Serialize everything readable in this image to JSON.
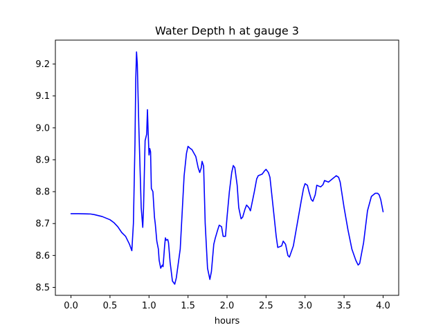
{
  "chart_data": {
    "type": "line",
    "title": "Water Depth h at gauge 3",
    "xlabel": "hours",
    "ylabel": "",
    "xlim": [
      -0.2,
      4.2
    ],
    "ylim": [
      8.475,
      9.275
    ],
    "xticks": [
      0.0,
      0.5,
      1.0,
      1.5,
      2.0,
      2.5,
      3.0,
      3.5,
      4.0
    ],
    "xtick_labels": [
      "0.0",
      "0.5",
      "1.0",
      "1.5",
      "2.0",
      "2.5",
      "3.0",
      "3.5",
      "4.0"
    ],
    "yticks": [
      8.5,
      8.6,
      8.7,
      8.8,
      8.9,
      9.0,
      9.1,
      9.2
    ],
    "ytick_labels": [
      "8.5",
      "8.6",
      "8.7",
      "8.8",
      "8.9",
      "9.0",
      "9.1",
      "9.2"
    ],
    "grid": false,
    "line_color": "#0000ff",
    "series": [
      {
        "x": [
          0.0,
          0.1,
          0.25,
          0.3,
          0.4,
          0.5,
          0.55,
          0.6,
          0.65,
          0.7,
          0.75,
          0.78,
          0.8,
          0.82,
          0.83,
          0.84,
          0.85,
          0.87,
          0.9,
          0.92,
          0.93,
          0.95,
          0.97,
          0.98,
          0.99,
          1.0,
          1.01,
          1.02,
          1.03,
          1.05,
          1.07,
          1.08,
          1.1,
          1.12,
          1.13,
          1.15,
          1.17,
          1.18,
          1.2,
          1.21,
          1.22,
          1.24,
          1.25,
          1.27,
          1.3,
          1.33,
          1.35,
          1.4,
          1.45,
          1.48,
          1.5,
          1.53,
          1.55,
          1.6,
          1.63,
          1.65,
          1.67,
          1.68,
          1.7,
          1.72,
          1.75,
          1.78,
          1.8,
          1.83,
          1.85,
          1.88,
          1.9,
          1.93,
          1.95,
          1.98,
          2.0,
          2.03,
          2.06,
          2.08,
          2.1,
          2.13,
          2.15,
          2.18,
          2.2,
          2.23,
          2.25,
          2.28,
          2.3,
          2.35,
          2.38,
          2.4,
          2.45,
          2.48,
          2.5,
          2.53,
          2.55,
          2.6,
          2.63,
          2.65,
          2.7,
          2.72,
          2.75,
          2.78,
          2.8,
          2.85,
          2.9,
          2.95,
          2.98,
          3.0,
          3.03,
          3.05,
          3.08,
          3.1,
          3.13,
          3.15,
          3.2,
          3.23,
          3.25,
          3.3,
          3.35,
          3.4,
          3.43,
          3.45,
          3.5,
          3.55,
          3.6,
          3.65,
          3.68,
          3.7,
          3.75,
          3.8,
          3.85,
          3.9,
          3.93,
          3.95,
          3.97,
          4.0
        ],
        "y": [
          8.731,
          8.731,
          8.73,
          8.728,
          8.722,
          8.712,
          8.703,
          8.69,
          8.672,
          8.66,
          8.635,
          8.615,
          8.7,
          8.95,
          9.15,
          9.238,
          9.2,
          9.0,
          8.75,
          8.688,
          8.75,
          8.96,
          8.98,
          9.057,
          8.98,
          8.915,
          8.935,
          8.925,
          8.81,
          8.8,
          8.72,
          8.7,
          8.645,
          8.62,
          8.585,
          8.56,
          8.57,
          8.565,
          8.63,
          8.655,
          8.648,
          8.65,
          8.64,
          8.58,
          8.52,
          8.51,
          8.53,
          8.62,
          8.85,
          8.92,
          8.942,
          8.935,
          8.932,
          8.91,
          8.875,
          8.86,
          8.875,
          8.895,
          8.88,
          8.7,
          8.56,
          8.525,
          8.55,
          8.635,
          8.655,
          8.68,
          8.695,
          8.69,
          8.66,
          8.66,
          8.72,
          8.8,
          8.86,
          8.882,
          8.875,
          8.82,
          8.75,
          8.715,
          8.72,
          8.745,
          8.758,
          8.75,
          8.74,
          8.8,
          8.84,
          8.85,
          8.855,
          8.865,
          8.87,
          8.86,
          8.845,
          8.73,
          8.66,
          8.625,
          8.63,
          8.645,
          8.635,
          8.6,
          8.595,
          8.63,
          8.7,
          8.77,
          8.81,
          8.825,
          8.82,
          8.8,
          8.775,
          8.77,
          8.79,
          8.82,
          8.815,
          8.822,
          8.835,
          8.83,
          8.84,
          8.85,
          8.845,
          8.83,
          8.75,
          8.68,
          8.62,
          8.585,
          8.57,
          8.575,
          8.64,
          8.74,
          8.785,
          8.795,
          8.795,
          8.79,
          8.775,
          8.737
        ]
      }
    ]
  }
}
